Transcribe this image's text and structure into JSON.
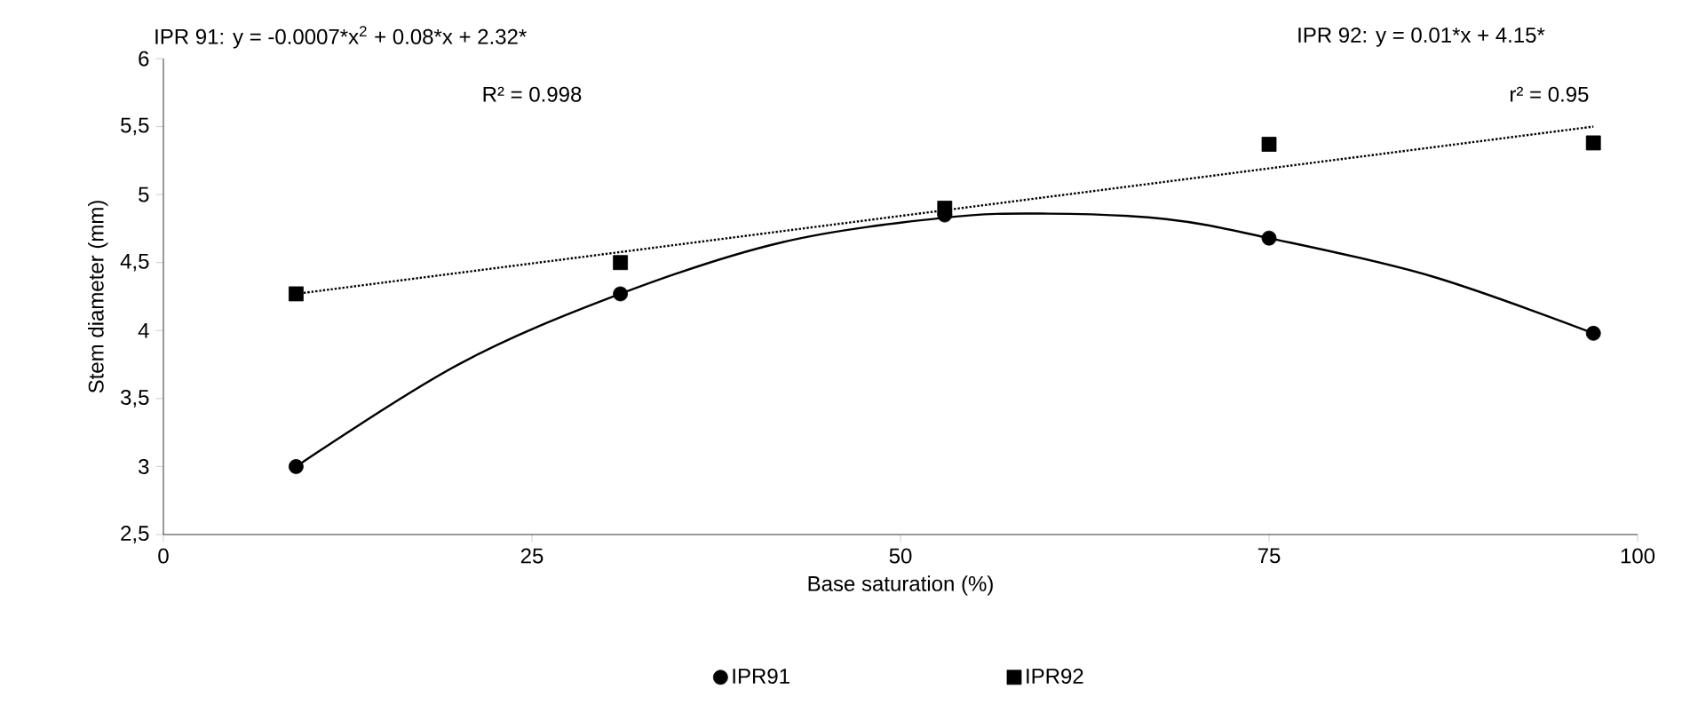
{
  "chart_data": {
    "type": "scatter",
    "xlabel": "Base saturation (%)",
    "ylabel": "Stem diameter (mm)",
    "xlim": [
      0,
      100
    ],
    "xticks": [
      0,
      25,
      50,
      75,
      100
    ],
    "ylim": [
      2.5,
      6
    ],
    "yticks": [
      {
        "value": 2.5,
        "label": "2,5"
      },
      3,
      {
        "value": 3.5,
        "label": "3,5"
      },
      4,
      {
        "value": 4.5,
        "label": "4,5"
      },
      5,
      {
        "value": 5.5,
        "label": "5,5"
      },
      6
    ],
    "grid": false,
    "legend": "bottom",
    "annotations": [
      "IPR 91: y = -0.0007*x$^{2}$ + 0.08*x + 2.32*",
      "R² = 0.998",
      "IPR 92: y = 0.01*x + 4.15*",
      "r² = 0.95"
    ],
    "series": [
      {
        "name": "IPR91",
        "marker": "circle",
        "color": "#000000",
        "x": [
          9,
          31,
          53,
          75,
          97
        ],
        "values": [
          3.0,
          4.27,
          4.85,
          4.68,
          3.98
        ]
      },
      {
        "name": "IPR92",
        "marker": "square",
        "color": "#000000",
        "x": [
          9,
          31,
          53,
          75,
          97
        ],
        "values": [
          4.27,
          4.5,
          4.9,
          5.37,
          5.38
        ]
      },
      {
        "type": "line",
        "line_style": "solid",
        "color": "#000000",
        "x": [
          9,
          20,
          31,
          42,
          53,
          60,
          68,
          75,
          86,
          97
        ],
        "values": [
          3.0,
          3.75,
          4.27,
          4.65,
          4.83,
          4.86,
          4.82,
          4.68,
          4.4,
          3.98
        ]
      },
      {
        "type": "line",
        "line_style": "dotted",
        "color": "#000000",
        "x": [
          9,
          97
        ],
        "values": [
          4.27,
          5.5
        ]
      }
    ]
  }
}
